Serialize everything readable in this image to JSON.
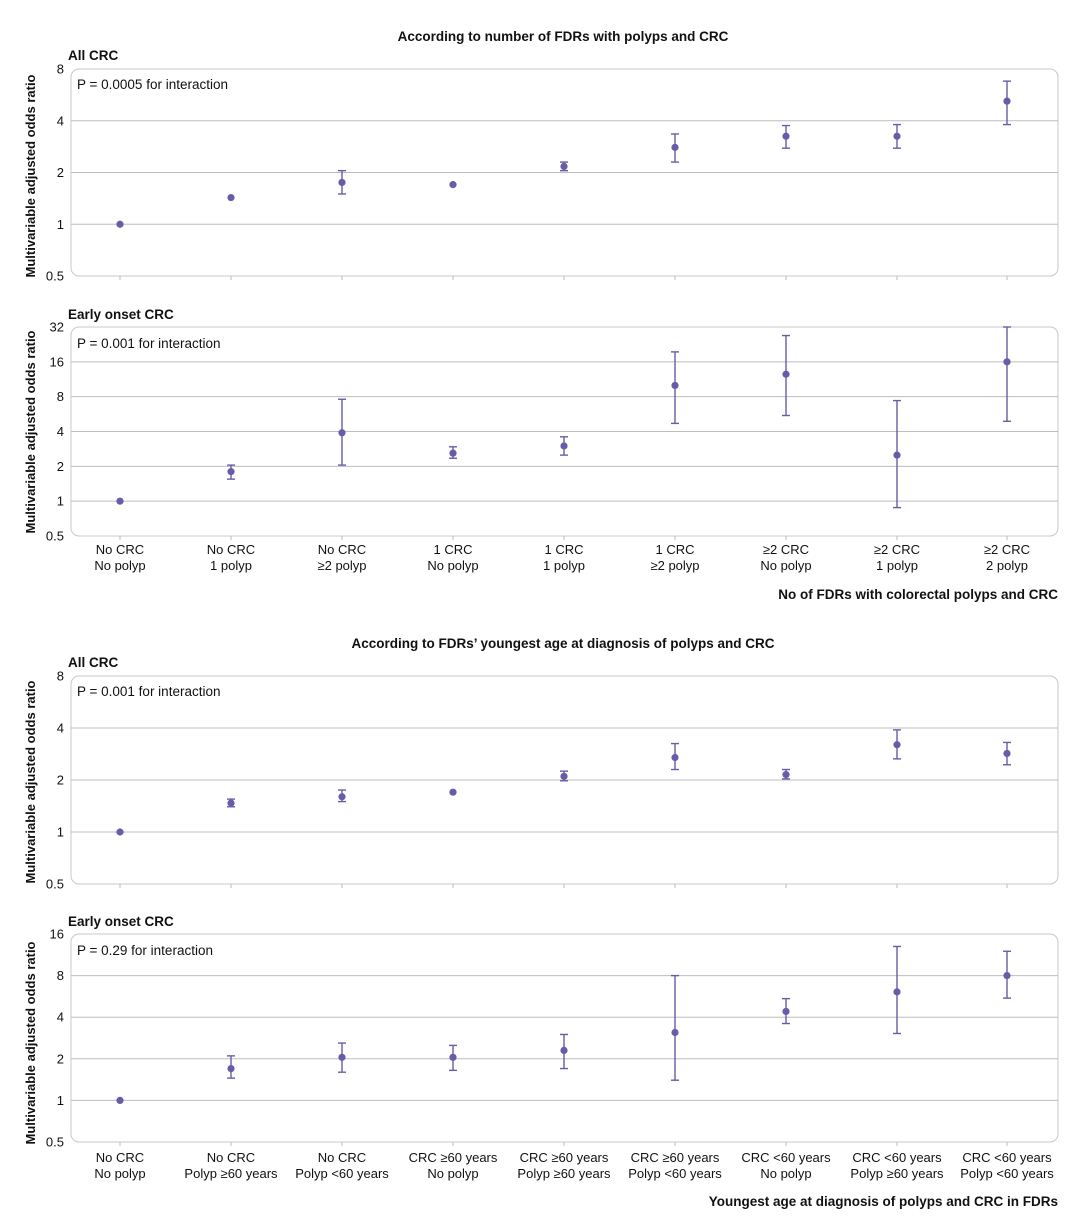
{
  "colors": {
    "marker": "#6a5ba8",
    "grid": "#bdbdbd",
    "frame": "#c8c8c8",
    "text": "#111111"
  },
  "chart_data": [
    {
      "type": "scatter",
      "figure_title": "According to number of FDRs with polyps and CRC",
      "xlabel": "No of FDRs with colorectal polyps and CRC",
      "ylabel": "Multivariable adjusted odds ratio",
      "y_scale": "log2",
      "categories": [
        [
          "No CRC",
          "No polyp"
        ],
        [
          "No CRC",
          "1 polyp"
        ],
        [
          "No CRC",
          "≥2 polyp"
        ],
        [
          "1 CRC",
          "No polyp"
        ],
        [
          "1 CRC",
          "1 polyp"
        ],
        [
          "1 CRC",
          "≥2 polyp"
        ],
        [
          "≥2 CRC",
          "No  polyp"
        ],
        [
          "≥2 CRC",
          "1  polyp"
        ],
        [
          "≥2 CRC",
          "2  polyp"
        ]
      ],
      "panels": [
        {
          "title": "All CRC",
          "annotation": "P = 0.0005 for interaction",
          "ylim": [
            0.5,
            8
          ],
          "yticks": [
            "0.5",
            "1",
            "2",
            "4",
            "8"
          ],
          "series": [
            {
              "name": "Odds ratio",
              "values": [
                1.0,
                1.43,
                1.75,
                1.7,
                2.17,
                2.8,
                3.25,
                3.25,
                5.2
              ]
            },
            {
              "name": "CI lower",
              "values": [
                1.0,
                1.43,
                1.5,
                1.7,
                2.05,
                2.3,
                2.77,
                2.77,
                3.8
              ]
            },
            {
              "name": "CI upper",
              "values": [
                1.0,
                1.43,
                2.05,
                1.7,
                2.3,
                3.35,
                3.75,
                3.8,
                6.8
              ]
            }
          ]
        },
        {
          "title": "Early onset CRC",
          "annotation": "P = 0.001 for interaction",
          "ylim": [
            0.5,
            32
          ],
          "yticks": [
            "0.5",
            "1",
            "2",
            "4",
            "8",
            "16",
            "32"
          ],
          "series": [
            {
              "name": "Odds ratio",
              "values": [
                1.0,
                1.8,
                3.9,
                2.6,
                3.0,
                10.0,
                12.5,
                2.5,
                16.0
              ]
            },
            {
              "name": "CI lower",
              "values": [
                1.0,
                1.55,
                2.05,
                2.35,
                2.5,
                4.7,
                5.5,
                0.88,
                4.9
              ]
            },
            {
              "name": "CI upper",
              "values": [
                1.0,
                2.05,
                7.6,
                2.95,
                3.6,
                19.5,
                27.0,
                7.4,
                32.0
              ]
            }
          ]
        }
      ]
    },
    {
      "type": "scatter",
      "figure_title": "According to FDRs’ youngest age at diagnosis of polyps and CRC",
      "xlabel": "Youngest age at diagnosis of polyps and CRC in FDRs",
      "ylabel": "Multivariable adjusted odds ratio",
      "y_scale": "log2",
      "categories": [
        [
          "No CRC",
          "No polyp"
        ],
        [
          "No CRC",
          "Polyp ≥60 years"
        ],
        [
          "No CRC",
          "Polyp <60 years"
        ],
        [
          "CRC ≥60 years",
          "No polyp"
        ],
        [
          "CRC ≥60 years",
          "Polyp ≥60 years"
        ],
        [
          "CRC ≥60 years",
          "Polyp <60 years"
        ],
        [
          "CRC <60 years",
          "No polyp"
        ],
        [
          "CRC <60 years",
          "Polyp ≥60 years"
        ],
        [
          "CRC <60 years",
          "Polyp <60 years"
        ]
      ],
      "panels": [
        {
          "title": "All CRC",
          "annotation": "P = 0.001 for interaction",
          "ylim": [
            0.5,
            8
          ],
          "yticks": [
            "0.5",
            "1",
            "2",
            "4",
            "8"
          ],
          "series": [
            {
              "name": "Odds ratio",
              "values": [
                1.0,
                1.47,
                1.6,
                1.7,
                2.1,
                2.7,
                2.15,
                3.2,
                2.85
              ]
            },
            {
              "name": "CI lower",
              "values": [
                1.0,
                1.4,
                1.5,
                1.7,
                1.98,
                2.3,
                2.03,
                2.65,
                2.45
              ]
            },
            {
              "name": "CI upper",
              "values": [
                1.0,
                1.55,
                1.75,
                1.7,
                2.25,
                3.25,
                2.3,
                3.9,
                3.3
              ]
            }
          ]
        },
        {
          "title": "Early onset CRC",
          "annotation": "P = 0.29 for interaction",
          "ylim": [
            0.5,
            16
          ],
          "yticks": [
            "0.5",
            "1",
            "2",
            "4",
            "8",
            "16"
          ],
          "series": [
            {
              "name": "Odds ratio",
              "values": [
                1.0,
                1.7,
                2.05,
                2.05,
                2.3,
                3.1,
                4.4,
                6.1,
                8.0
              ]
            },
            {
              "name": "CI lower",
              "values": [
                1.0,
                1.45,
                1.6,
                1.65,
                1.7,
                1.4,
                3.6,
                3.05,
                5.5
              ]
            },
            {
              "name": "CI upper",
              "values": [
                1.0,
                2.1,
                2.6,
                2.5,
                3.0,
                8.0,
                5.45,
                13.0,
                12.0
              ]
            }
          ]
        }
      ]
    }
  ]
}
